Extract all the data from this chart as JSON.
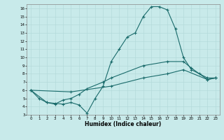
{
  "title": "",
  "xlabel": "Humidex (Indice chaleur)",
  "bg_color": "#c8eaea",
  "grid_color": "#b0d8d8",
  "line_color": "#1a6b6b",
  "xlim": [
    -0.5,
    23.5
  ],
  "ylim": [
    3,
    16.5
  ],
  "yticks": [
    3,
    4,
    5,
    6,
    7,
    8,
    9,
    10,
    11,
    12,
    13,
    14,
    15,
    16
  ],
  "xticks": [
    0,
    1,
    2,
    3,
    4,
    5,
    6,
    7,
    8,
    9,
    10,
    11,
    12,
    13,
    14,
    15,
    16,
    17,
    18,
    19,
    20,
    21,
    22,
    23
  ],
  "line1_x": [
    0,
    1,
    2,
    3,
    4,
    5,
    6,
    7,
    8,
    9,
    10,
    11,
    12,
    13,
    14,
    15,
    16,
    17,
    18,
    19,
    20,
    21,
    22,
    23
  ],
  "line1_y": [
    6.0,
    5.0,
    4.5,
    4.4,
    4.3,
    4.5,
    4.2,
    3.2,
    5.0,
    6.5,
    9.5,
    11.0,
    12.5,
    13.0,
    15.0,
    16.2,
    16.2,
    15.8,
    13.5,
    10.0,
    8.5,
    8.0,
    7.5,
    7.5
  ],
  "line2_x": [
    0,
    2,
    3,
    4,
    5,
    6,
    7,
    9,
    10,
    14,
    17,
    19,
    20,
    22,
    23
  ],
  "line2_y": [
    6.0,
    4.5,
    4.3,
    4.8,
    5.0,
    5.5,
    6.2,
    7.0,
    7.5,
    9.0,
    9.5,
    9.5,
    8.7,
    7.3,
    7.5
  ],
  "line3_x": [
    0,
    5,
    10,
    14,
    17,
    19,
    22,
    23
  ],
  "line3_y": [
    6.0,
    5.8,
    6.5,
    7.5,
    8.0,
    8.5,
    7.3,
    7.5
  ]
}
